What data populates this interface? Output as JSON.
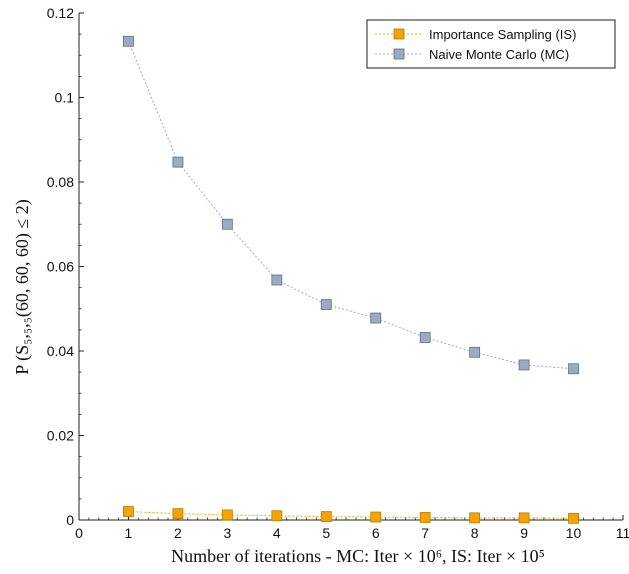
{
  "chart_data": {
    "type": "line",
    "title": "",
    "xlabel": "Number of iterations - MC: Iter × 10⁶, IS: Iter × 10⁵",
    "ylabel": "P (S₅,₅,₅(60, 60, 60) ≤ 2)",
    "xlim": [
      0,
      11
    ],
    "ylim": [
      0,
      0.12
    ],
    "x_ticks": [
      "0",
      "1",
      "2",
      "3",
      "4",
      "5",
      "6",
      "7",
      "8",
      "9",
      "10",
      "11"
    ],
    "y_ticks": [
      "0",
      "0.02",
      "0.04",
      "0.06",
      "0.08",
      "0.1",
      "0.12"
    ],
    "grid": false,
    "legend_position": "top-right",
    "x": [
      1,
      2,
      3,
      4,
      5,
      6,
      7,
      8,
      9,
      10
    ],
    "series": [
      {
        "name": "Importance Sampling (IS)",
        "color": "#f5a300",
        "marker": "square",
        "line_style": "dotted",
        "values": [
          0.002,
          0.0015,
          0.0012,
          0.001,
          0.0008,
          0.0007,
          0.0006,
          0.0005,
          0.0005,
          0.0004
        ]
      },
      {
        "name": "Naive Monte Carlo (MC)",
        "color": "#9bacc0",
        "marker": "square",
        "line_style": "dotted",
        "values": [
          0.1133,
          0.0847,
          0.07,
          0.0568,
          0.051,
          0.0478,
          0.0432,
          0.0397,
          0.0367,
          0.0358
        ]
      }
    ]
  }
}
